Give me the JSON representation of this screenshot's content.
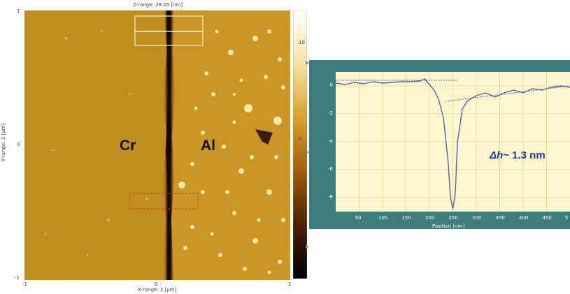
{
  "afm": {
    "z_range": "Z-range: 28.05 [nm]",
    "x_range": "X-range: 2 [µm]",
    "y_range": "Y-range: 2 [µm]",
    "x_ticks": [
      "-1",
      "0",
      "1"
    ],
    "y_ticks": [
      "1",
      "0",
      "-1"
    ],
    "colorbar_ticks": [
      "10",
      "0",
      "-10"
    ],
    "label_left": "Cr",
    "label_right": "Al"
  },
  "chart_data": {
    "type": "line",
    "title": "",
    "xlabel": "Position [nm]",
    "ylabel": "",
    "xlim": [
      0,
      500
    ],
    "ylim": [
      -9,
      1
    ],
    "x_ticks": [
      "50",
      "100",
      "150",
      "200",
      "250",
      "300",
      "350",
      "400",
      "450",
      "5"
    ],
    "y_ticks": [
      "0",
      "-2",
      "-4",
      "-6",
      "-8"
    ],
    "grid": true,
    "annotation": "~ 1.3 nm",
    "annotation_symbol": "Δh",
    "series": [
      {
        "x": [
          0,
          20,
          40,
          60,
          80,
          100,
          120,
          140,
          160,
          180,
          190,
          200,
          210,
          220,
          230,
          240,
          245,
          250,
          255,
          260,
          270,
          280,
          290,
          300,
          320,
          340,
          360,
          380,
          400,
          420,
          440,
          460,
          480,
          500
        ],
        "y": [
          0.2,
          0.1,
          0.25,
          0.15,
          0.3,
          0.2,
          0.25,
          0.3,
          0.3,
          0.35,
          0.5,
          0.1,
          -0.3,
          -1.0,
          -2.3,
          -5.5,
          -8.0,
          -8.8,
          -7.8,
          -4.0,
          -1.7,
          -1.1,
          -0.9,
          -0.7,
          -0.5,
          -0.8,
          -0.5,
          -0.3,
          -0.5,
          -0.2,
          -0.3,
          -0.1,
          0.0,
          -0.1
        ]
      }
    ],
    "reference_lines": [
      {
        "x": [
          0,
          260
        ],
        "y": [
          0.4,
          0.4
        ]
      },
      {
        "x": [
          235,
          500
        ],
        "y": [
          -1.1,
          0.0
        ]
      }
    ]
  },
  "colors": {
    "panel_border": "#3e7b7e",
    "plot_bg": "#fdf6cf",
    "grid": "#e8c86a",
    "curve": "#5663a6",
    "annotation": "#1f3a93"
  }
}
